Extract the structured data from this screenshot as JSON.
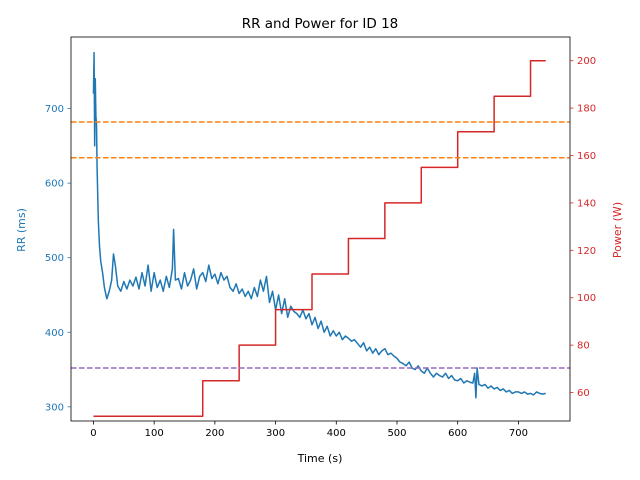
{
  "chart_data": {
    "type": "line",
    "title": "RR and Power for ID 18",
    "xlabel": "Time (s)",
    "ylabel_left": "RR (ms)",
    "ylabel_right": "Power (W)",
    "xlim": [
      -37,
      785
    ],
    "ylim_left": [
      281,
      796
    ],
    "ylim_right": [
      48,
      210
    ],
    "x_ticks": [
      0,
      100,
      200,
      300,
      400,
      500,
      600,
      700
    ],
    "y_left_ticks": [
      300,
      400,
      500,
      600,
      700
    ],
    "y_right_ticks": [
      60,
      80,
      100,
      120,
      140,
      160,
      180,
      200
    ],
    "grid": false,
    "legend": "none",
    "colors": {
      "rr": "#1f77b4",
      "power": "#d62728",
      "threshold_upper": "#ff7f0e",
      "threshold_lower": "#9467bd",
      "left_axis_text": "#1f77b4",
      "right_axis_text": "#d62728"
    },
    "series": [
      {
        "axis": "left",
        "x": [
          0,
          1,
          2,
          3,
          4,
          5,
          6,
          8,
          10,
          12,
          15,
          18,
          22,
          26,
          30,
          33,
          36,
          40,
          45,
          50,
          55,
          60,
          65,
          70,
          75,
          80,
          85,
          90,
          95,
          100,
          105,
          110,
          115,
          120,
          125,
          130,
          132,
          135,
          140,
          145,
          150,
          155,
          160,
          165,
          170,
          175,
          180,
          185,
          190,
          195,
          200,
          205,
          210,
          215,
          220,
          225,
          230,
          235,
          240,
          245,
          250,
          255,
          260,
          265,
          270,
          275,
          280,
          285,
          290,
          295,
          300,
          305,
          310,
          315,
          320,
          325,
          330,
          335,
          340,
          345,
          350,
          355,
          360,
          365,
          370,
          375,
          380,
          385,
          390,
          395,
          400,
          405,
          410,
          415,
          420,
          425,
          430,
          435,
          440,
          445,
          450,
          455,
          460,
          465,
          470,
          475,
          480,
          485,
          490,
          495,
          500,
          505,
          510,
          515,
          520,
          525,
          530,
          535,
          540,
          545,
          550,
          555,
          560,
          565,
          570,
          575,
          580,
          585,
          590,
          595,
          600,
          605,
          610,
          615,
          620,
          625,
          628,
          630,
          632,
          635,
          640,
          645,
          650,
          655,
          660,
          665,
          670,
          675,
          680,
          685,
          690,
          695,
          700,
          705,
          710,
          715,
          720,
          725,
          730,
          735,
          740,
          745
        ],
        "y": [
          720,
          775,
          650,
          740,
          690,
          680,
          620,
          550,
          515,
          495,
          480,
          460,
          445,
          455,
          470,
          505,
          490,
          462,
          455,
          468,
          458,
          470,
          462,
          474,
          458,
          480,
          462,
          490,
          455,
          480,
          460,
          470,
          455,
          475,
          460,
          485,
          538,
          470,
          472,
          458,
          480,
          462,
          470,
          485,
          458,
          475,
          480,
          468,
          490,
          472,
          478,
          465,
          480,
          470,
          475,
          460,
          455,
          465,
          452,
          458,
          448,
          455,
          445,
          460,
          448,
          470,
          455,
          475,
          440,
          455,
          430,
          450,
          425,
          445,
          420,
          435,
          428,
          425,
          420,
          430,
          418,
          425,
          410,
          420,
          405,
          415,
          400,
          408,
          395,
          402,
          395,
          400,
          390,
          395,
          392,
          388,
          390,
          385,
          380,
          386,
          375,
          380,
          372,
          378,
          370,
          375,
          378,
          370,
          372,
          368,
          365,
          360,
          358,
          355,
          360,
          352,
          350,
          355,
          348,
          345,
          352,
          345,
          340,
          345,
          342,
          340,
          345,
          338,
          342,
          336,
          335,
          338,
          332,
          335,
          333,
          332,
          345,
          312,
          352,
          330,
          328,
          330,
          325,
          328,
          324,
          326,
          322,
          324,
          320,
          322,
          318,
          320,
          320,
          318,
          320,
          317,
          318,
          316,
          320,
          318,
          317,
          318
        ]
      },
      {
        "axis": "right",
        "x": [
          0,
          180,
          180,
          240,
          240,
          300,
          300,
          360,
          360,
          420,
          420,
          480,
          480,
          540,
          540,
          600,
          600,
          660,
          660,
          720,
          720,
          745
        ],
        "y": [
          50,
          50,
          65,
          65,
          80,
          80,
          95,
          95,
          110,
          110,
          125,
          125,
          140,
          140,
          155,
          155,
          170,
          170,
          185,
          185,
          200,
          200
        ]
      }
    ],
    "reference_lines": [
      {
        "axis": "left",
        "y": 682,
        "style": "dashed",
        "color": "#ff7f0e"
      },
      {
        "axis": "left",
        "y": 634,
        "style": "dashed",
        "color": "#ff7f0e"
      },
      {
        "axis": "left",
        "y": 352,
        "style": "dashed",
        "color": "#9467bd"
      }
    ]
  }
}
